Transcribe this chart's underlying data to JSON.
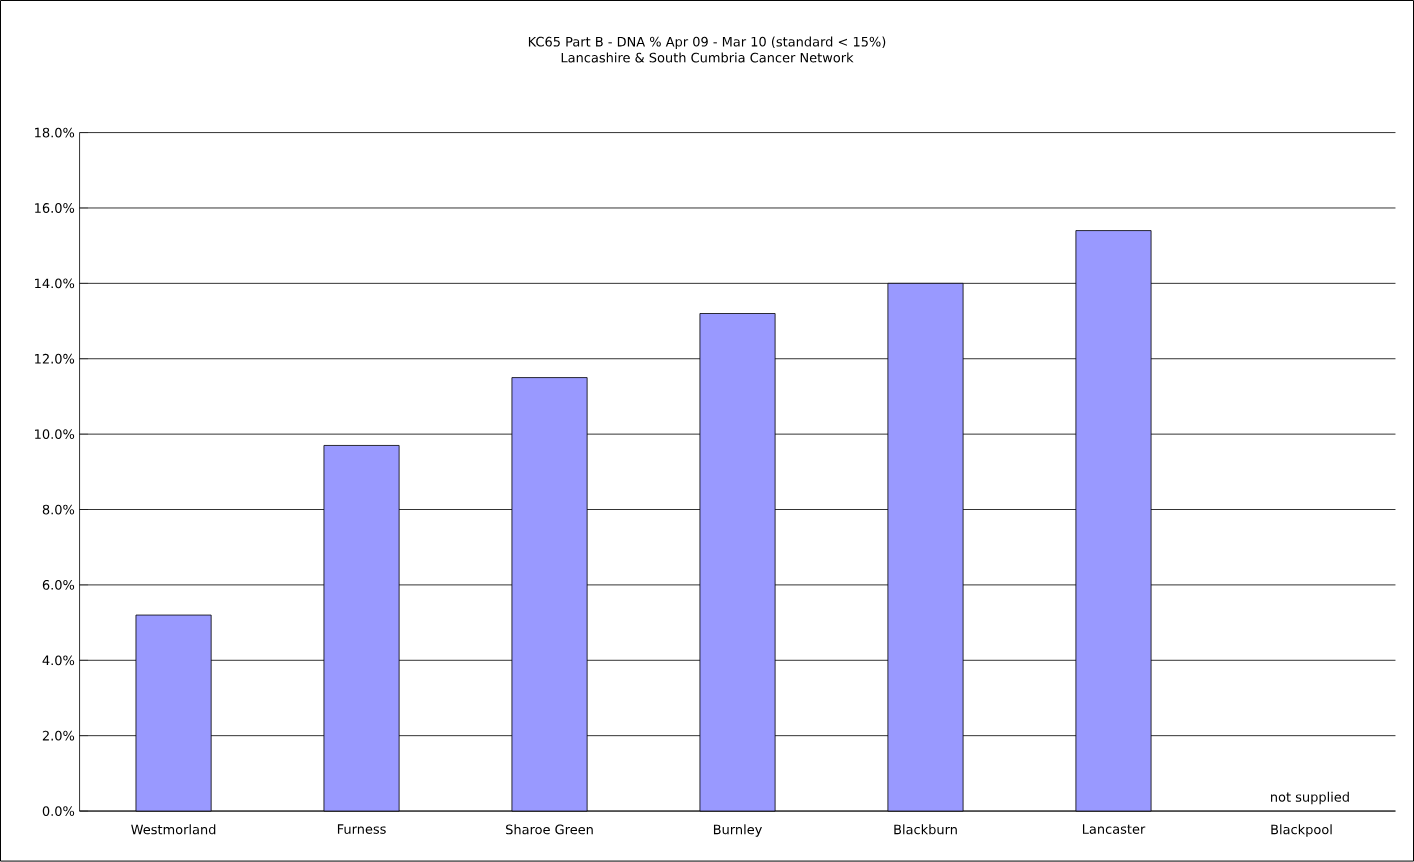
{
  "chart_data": {
    "type": "bar",
    "title": "KC65 Part B - DNA % Apr 09 - Mar 10 (standard < 15%)",
    "subtitle": "Lancashire & South Cumbria Cancer Network",
    "categories": [
      "Westmorland",
      "Furness",
      "Sharoe Green",
      "Burnley",
      "Blackburn",
      "Lancaster",
      "Blackpool"
    ],
    "values": [
      5.2,
      9.7,
      11.5,
      13.2,
      14.0,
      15.4,
      null
    ],
    "color": "#9999ff",
    "ylim": [
      0,
      18
    ],
    "yticks": [
      {
        "value": 0,
        "label": "0.0%"
      },
      {
        "value": 2,
        "label": "2.0%"
      },
      {
        "value": 4,
        "label": "4.0%"
      },
      {
        "value": 6,
        "label": "6.0%"
      },
      {
        "value": 8,
        "label": "8.0%"
      },
      {
        "value": 10,
        "label": "10.0%"
      },
      {
        "value": 12,
        "label": "12.0%"
      },
      {
        "value": 14,
        "label": "14.0%"
      },
      {
        "value": 16,
        "label": "16.0%"
      },
      {
        "value": 18,
        "label": "18.0%"
      }
    ],
    "grid": "y",
    "annotations": [
      "not supplied"
    ]
  }
}
